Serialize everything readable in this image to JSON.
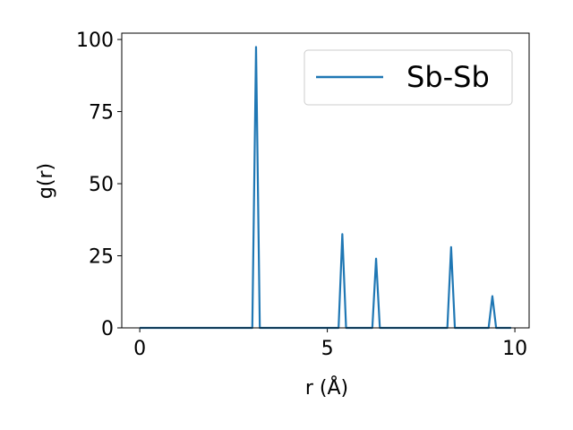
{
  "chart_data": {
    "type": "line",
    "xlabel": "r (Å)",
    "ylabel": "g(r)",
    "x": [
      0,
      3.0,
      3.1,
      3.2,
      5.3,
      5.4,
      5.5,
      6.2,
      6.3,
      6.4,
      8.2,
      8.3,
      8.4,
      9.3,
      9.4,
      9.5,
      9.9
    ],
    "series": [
      {
        "name": "Sb-Sb",
        "color": "#1f77b4",
        "values": [
          0,
          0,
          97.4,
          0,
          0,
          32.5,
          0,
          0,
          24,
          0,
          0,
          28,
          0,
          0,
          11,
          0,
          0
        ]
      }
    ],
    "xlim": [
      -0.48,
      10.38
    ],
    "ylim": [
      0,
      102.2
    ],
    "xticks": [
      0,
      5,
      10
    ],
    "yticks": [
      0,
      25,
      50,
      75,
      100
    ],
    "legend": "upper right"
  }
}
